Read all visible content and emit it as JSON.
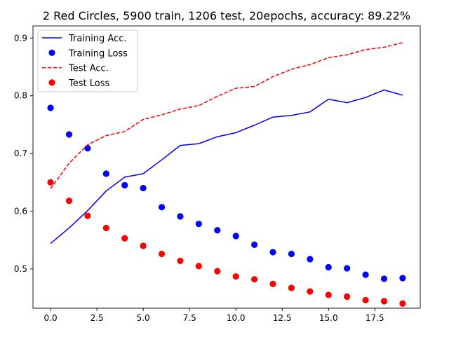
{
  "chart_data": {
    "type": "line",
    "title": "2 Red Circles, 5900 train, 1206 test, 20epochs, accuracy: 89.22%",
    "xlabel": "",
    "ylabel": "",
    "xlim": [
      -0.95,
      19.95
    ],
    "ylim": [
      0.432,
      0.921
    ],
    "xticks": [
      0.0,
      2.5,
      5.0,
      7.5,
      10.0,
      12.5,
      15.0,
      17.5
    ],
    "xtick_labels": [
      "0.0",
      "2.5",
      "5.0",
      "7.5",
      "10.0",
      "12.5",
      "15.0",
      "17.5"
    ],
    "yticks": [
      0.5,
      0.6,
      0.7,
      0.8,
      0.9
    ],
    "ytick_labels": [
      "0.5",
      "0.6",
      "0.7",
      "0.8",
      "0.9"
    ],
    "grid": false,
    "legend_position": "top-left",
    "x": [
      0,
      1,
      2,
      3,
      4,
      5,
      6,
      7,
      8,
      9,
      10,
      11,
      12,
      13,
      14,
      15,
      16,
      17,
      18,
      19
    ],
    "series": [
      {
        "name": "Training Acc.",
        "style": "line-solid",
        "color": "#0000ff",
        "values": [
          0.544,
          0.571,
          0.601,
          0.635,
          0.659,
          0.665,
          0.689,
          0.714,
          0.717,
          0.729,
          0.736,
          0.749,
          0.763,
          0.766,
          0.772,
          0.794,
          0.788,
          0.797,
          0.81,
          0.801
        ]
      },
      {
        "name": "Training Loss",
        "style": "marker-circle",
        "color": "#0000ff",
        "values": [
          0.779,
          0.733,
          0.709,
          0.665,
          0.645,
          0.64,
          0.607,
          0.591,
          0.578,
          0.567,
          0.557,
          0.542,
          0.529,
          0.526,
          0.517,
          0.503,
          0.501,
          0.49,
          0.483,
          0.484
        ]
      },
      {
        "name": "Test Acc.",
        "style": "line-dashed",
        "color": "#ff0000",
        "values": [
          0.639,
          0.683,
          0.715,
          0.731,
          0.738,
          0.759,
          0.767,
          0.777,
          0.783,
          0.799,
          0.813,
          0.816,
          0.833,
          0.846,
          0.854,
          0.866,
          0.871,
          0.88,
          0.884,
          0.892
        ]
      },
      {
        "name": "Test Loss",
        "style": "marker-circle",
        "color": "#ff0000",
        "values": [
          0.65,
          0.618,
          0.592,
          0.571,
          0.553,
          0.54,
          0.526,
          0.514,
          0.505,
          0.496,
          0.487,
          0.482,
          0.474,
          0.467,
          0.461,
          0.455,
          0.452,
          0.446,
          0.444,
          0.44
        ]
      }
    ]
  }
}
